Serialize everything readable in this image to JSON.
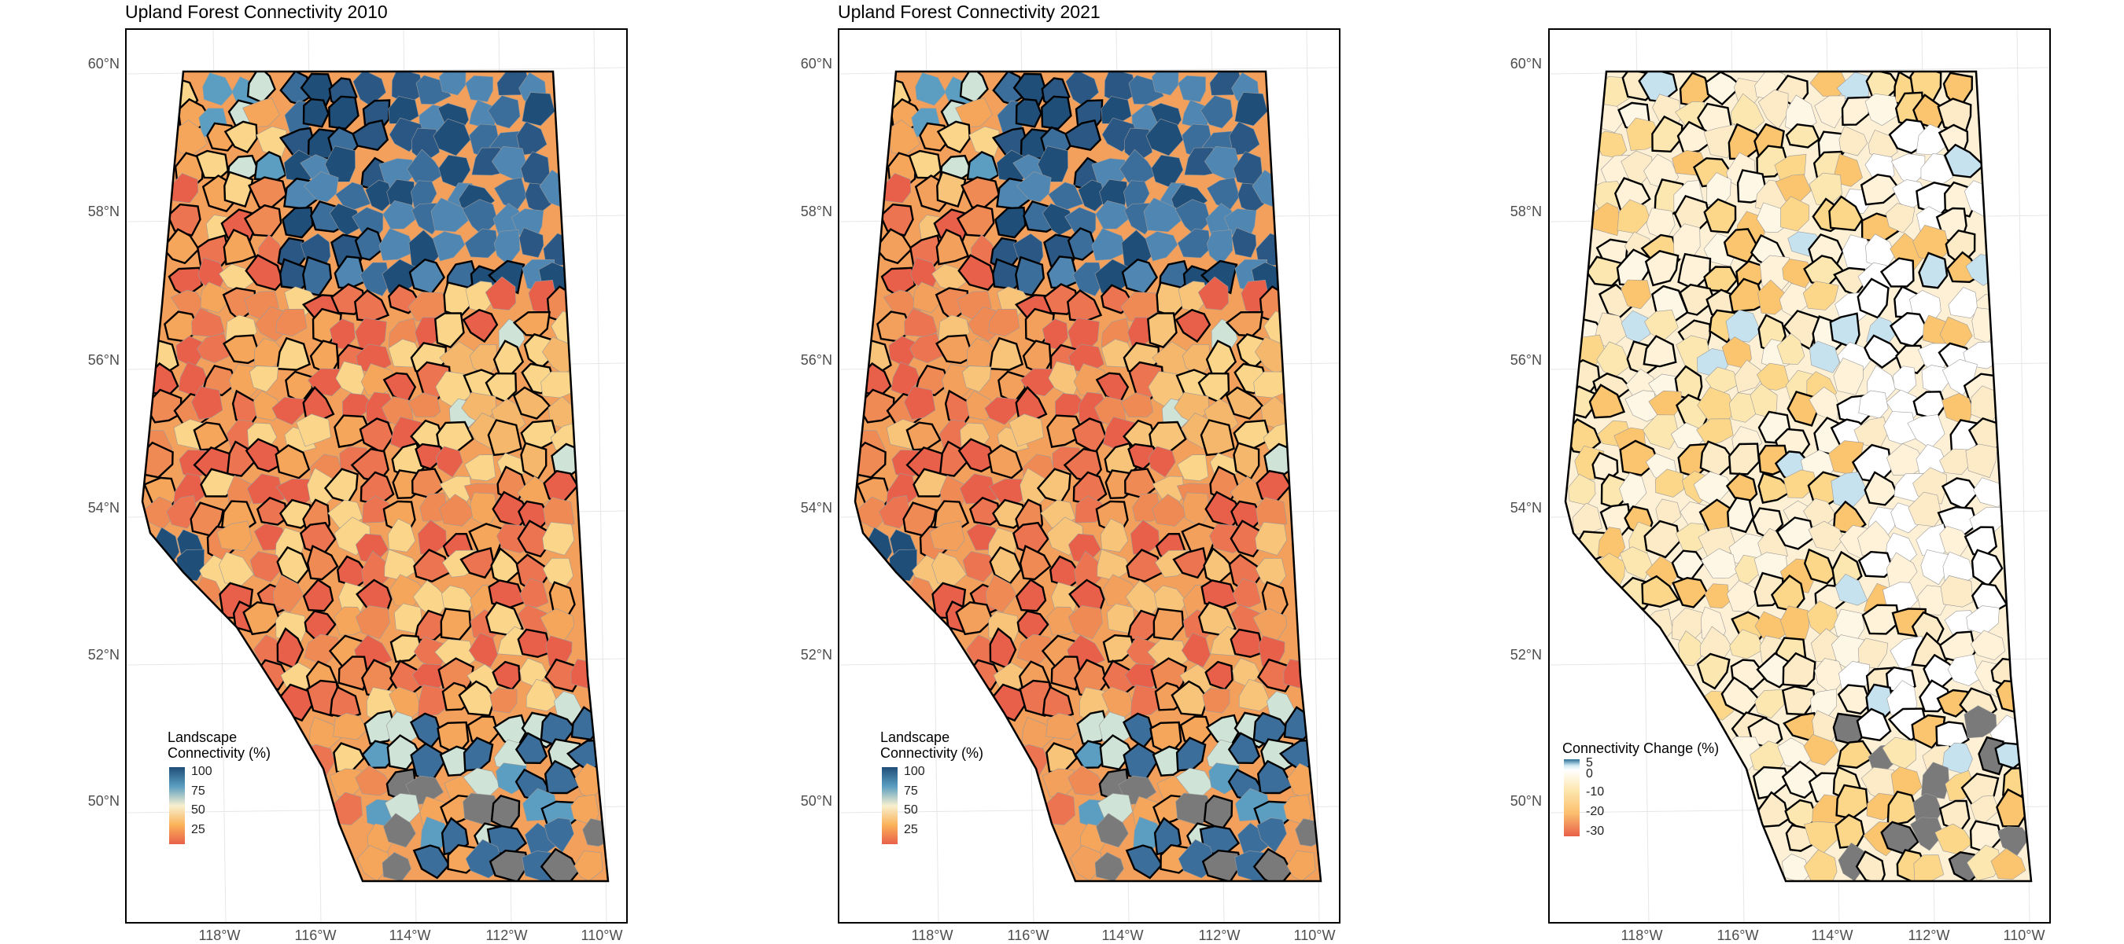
{
  "panels": [
    {
      "id": "conn-2010",
      "title": "Upland Forest Connectivity 2010",
      "legend_title": "Landscape\nConnectivity (%)",
      "legend_ticks": [
        "100",
        "75",
        "50",
        "25"
      ],
      "legend_scale": "orange-to-blue"
    },
    {
      "id": "conn-2021",
      "title": "Upland Forest Connectivity 2021",
      "legend_title": "Landscape\nConnectivity (%)",
      "legend_ticks": [
        "100",
        "75",
        "50",
        "25"
      ],
      "legend_scale": "orange-to-blue"
    },
    {
      "id": "conn-change",
      "title": "",
      "legend_title": "Connectivity Change (%)",
      "legend_ticks": [
        "5",
        "0",
        "-10",
        "-20",
        "-30"
      ],
      "legend_scale": "red-to-white-to-blue"
    }
  ],
  "axes": {
    "lat_labels": [
      "60°N",
      "58°N",
      "56°N",
      "54°N",
      "52°N",
      "50°N"
    ],
    "lon_labels": [
      "118°W",
      "116°W",
      "114°W",
      "112°W",
      "110°W"
    ]
  },
  "colors": {
    "high": "#2a5783",
    "mid_high": "#5b9ec1",
    "mid": "#cfe3d6",
    "mid_low": "#fbd58a",
    "low": "#e8604a",
    "no_data": "#7a7a7a",
    "boundary": "#000000"
  }
}
